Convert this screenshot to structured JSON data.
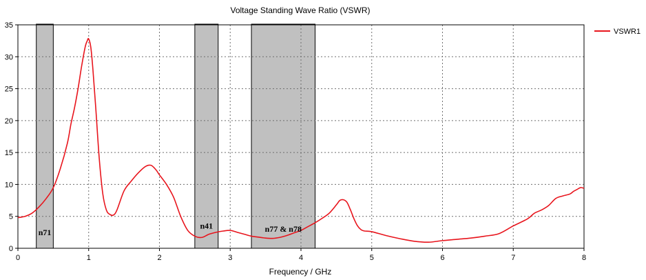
{
  "chart_data": {
    "type": "line",
    "title": "Voltage Standing Wave Ratio (VSWR)",
    "xlabel": "Frequency / GHz",
    "ylabel": "",
    "xlim": [
      0,
      8
    ],
    "ylim": [
      0,
      35
    ],
    "x_ticks": [
      0,
      1,
      2,
      3,
      4,
      5,
      6,
      7,
      8
    ],
    "y_ticks": [
      0,
      5,
      10,
      15,
      20,
      25,
      30,
      35
    ],
    "grid": true,
    "legend_position": "top-right",
    "colors": {
      "series": "#e8141c",
      "band_fill": "#c0c0c0",
      "band_edge": "#000000",
      "grid": "#6e6e6e"
    },
    "bands": [
      {
        "label": "n71",
        "x_start": 0.26,
        "x_end": 0.5,
        "label_y": 2.5
      },
      {
        "label": "n41",
        "x_start": 2.5,
        "x_end": 2.83,
        "label_y": 3.5
      },
      {
        "label": "n77 & n78",
        "x_start": 3.3,
        "x_end": 4.2,
        "label_y": 3.0
      }
    ],
    "series": [
      {
        "name": "VSWR1",
        "x": [
          0,
          0.1,
          0.2,
          0.3,
          0.4,
          0.5,
          0.6,
          0.7,
          0.75,
          0.8,
          0.85,
          0.9,
          0.95,
          0.98,
          1.0,
          1.03,
          1.06,
          1.1,
          1.15,
          1.2,
          1.25,
          1.3,
          1.35,
          1.4,
          1.5,
          1.6,
          1.7,
          1.8,
          1.88,
          1.95,
          2.0,
          2.1,
          2.2,
          2.3,
          2.4,
          2.5,
          2.6,
          2.7,
          2.8,
          2.9,
          3.0,
          3.1,
          3.2,
          3.3,
          3.4,
          3.5,
          3.6,
          3.7,
          3.8,
          3.9,
          4.0,
          4.1,
          4.2,
          4.3,
          4.4,
          4.5,
          4.55,
          4.6,
          4.65,
          4.7,
          4.75,
          4.8,
          4.85,
          4.9,
          5.0,
          5.2,
          5.4,
          5.6,
          5.8,
          6.0,
          6.2,
          6.4,
          6.6,
          6.8,
          7.0,
          7.2,
          7.3,
          7.4,
          7.5,
          7.6,
          7.7,
          7.8,
          7.85,
          7.9,
          7.95,
          8.0
        ],
        "values": [
          4.8,
          5.0,
          5.5,
          6.5,
          7.8,
          9.5,
          12.5,
          16.5,
          19.5,
          22.0,
          25.0,
          28.5,
          31.5,
          32.5,
          32.8,
          31.5,
          28.0,
          22.0,
          14.0,
          8.5,
          6.0,
          5.3,
          5.2,
          6.0,
          9.0,
          10.5,
          11.8,
          12.8,
          13.0,
          12.3,
          11.5,
          10.0,
          8.0,
          5.0,
          2.8,
          1.9,
          1.7,
          2.2,
          2.5,
          2.7,
          2.8,
          2.5,
          2.2,
          1.9,
          1.75,
          1.6,
          1.55,
          1.7,
          2.0,
          2.4,
          2.8,
          3.4,
          4.0,
          4.7,
          5.5,
          6.8,
          7.5,
          7.6,
          7.2,
          6.0,
          4.6,
          3.5,
          2.9,
          2.7,
          2.6,
          2.0,
          1.5,
          1.1,
          0.95,
          1.2,
          1.4,
          1.6,
          1.9,
          2.3,
          3.5,
          4.6,
          5.5,
          6.0,
          6.7,
          7.8,
          8.2,
          8.5,
          8.9,
          9.2,
          9.5,
          9.4
        ]
      }
    ]
  }
}
